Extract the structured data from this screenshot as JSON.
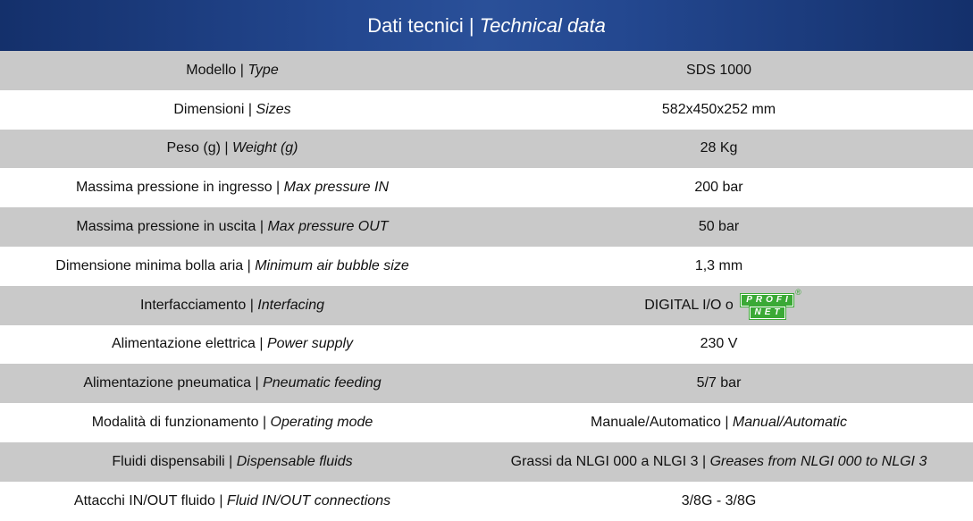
{
  "header": {
    "title": [
      "Dati tecnici | ",
      "Technical data"
    ]
  },
  "table": {
    "rows": [
      {
        "label": [
          "Modello | ",
          "Type"
        ],
        "value": [
          "SDS 1000"
        ]
      },
      {
        "label": [
          "Dimensioni | ",
          "Sizes"
        ],
        "value": [
          "582x450x252 mm"
        ]
      },
      {
        "label": [
          "Peso (g) | ",
          "Weight (g)"
        ],
        "value": [
          "28 Kg"
        ]
      },
      {
        "label": [
          "Massima pressione in ingresso | ",
          "Max pressure IN"
        ],
        "value": [
          "200 bar"
        ]
      },
      {
        "label": [
          "Massima pressione in uscita | ",
          "Max pressure OUT"
        ],
        "value": [
          "50 bar"
        ]
      },
      {
        "label": [
          "Dimensione minima bolla aria | ",
          "Minimum air bubble size"
        ],
        "value": [
          "1,3 mm"
        ]
      },
      {
        "label": [
          "Interfacciamento | ",
          "Interfacing"
        ],
        "value": [
          "DIGITAL I/O o "
        ],
        "logo": [
          "PROFI",
          "NET",
          "®"
        ]
      },
      {
        "label": [
          "Alimentazione elettrica | ",
          "Power supply"
        ],
        "value": [
          "230 V"
        ]
      },
      {
        "label": [
          "Alimentazione pneumatica | ",
          "Pneumatic feeding"
        ],
        "value": [
          "5/7 bar"
        ]
      },
      {
        "label": [
          "Modalità di funzionamento | ",
          "Operating mode"
        ],
        "value": [
          "Manuale/Automatico | ",
          "Manual/Automatic"
        ]
      },
      {
        "label": [
          "Fluidi dispensabili | ",
          "Dispensable fluids"
        ],
        "value": [
          "Grassi da NLGI 000 a NLGI 3 | ",
          "Greases from NLGI 000 to NLGI 3"
        ]
      },
      {
        "label": [
          "Attacchi IN/OUT fluido | ",
          "Fluid IN/OUT connections"
        ],
        "value": [
          "3/8G - 3/8G"
        ]
      }
    ]
  }
}
